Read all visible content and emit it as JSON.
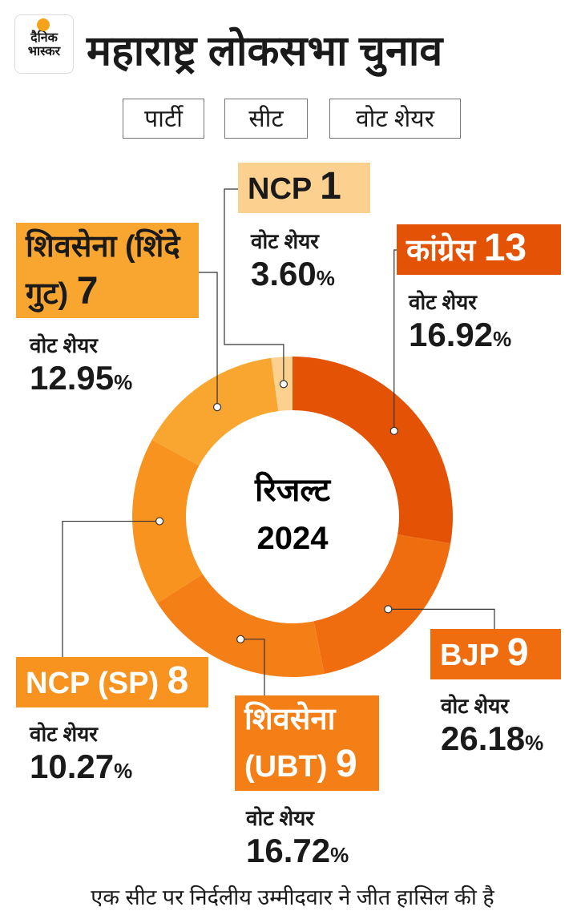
{
  "logo": [
    "दैनिक",
    "भास्कर"
  ],
  "title": "महाराष्ट्र लोकसभा चुनाव",
  "tabs": [
    "पार्टी",
    "सीट",
    "वोट शेयर"
  ],
  "footer": "एक सीट पर निर्दलीय उम्मीदवार ने जीत हासिल की है",
  "chart_data": {
    "type": "donut",
    "center_label": "रिजल्ट",
    "center_year": "2024",
    "categories": [
      "कांग्रेस",
      "BJP",
      "शिवसेना (UBT)",
      "NCP (SP)",
      "शिवसेना (शिंदे गुट)",
      "NCP"
    ],
    "values": [
      13,
      9,
      9,
      8,
      7,
      1
    ],
    "colors": [
      "#e35205",
      "#ef6c0f",
      "#f57f17",
      "#f7931e",
      "#f9a630",
      "#fcd08e"
    ],
    "vote_share_label": "वोट शेयर",
    "vote_shares": [
      16.92,
      26.18,
      16.72,
      10.27,
      12.95,
      3.6
    ],
    "vote_share_labels": [
      "16.92",
      "26.18",
      "16.72",
      "10.27",
      "12.95",
      "3.60"
    ],
    "vote_share_unit": "%"
  }
}
